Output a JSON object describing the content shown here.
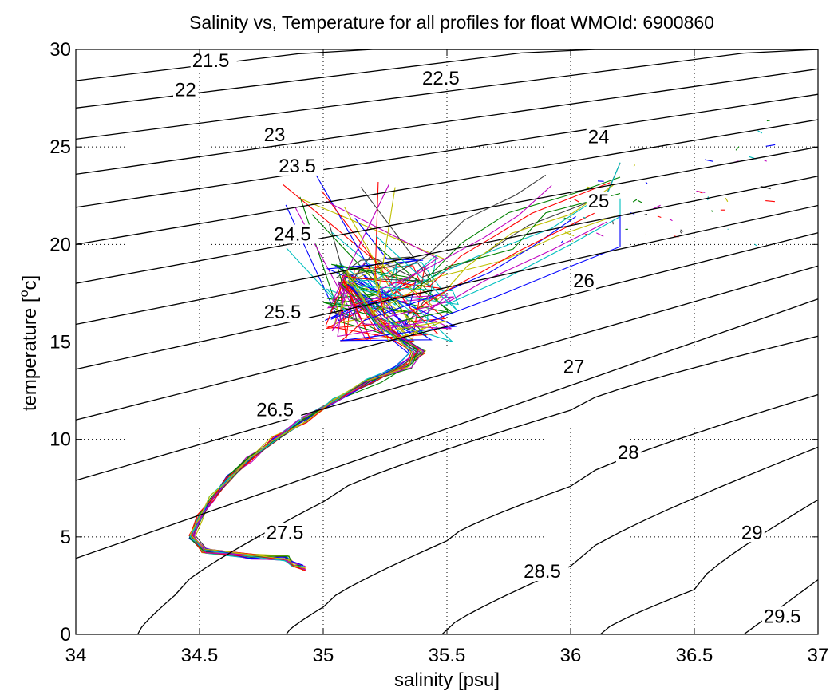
{
  "chart_data": {
    "type": "line",
    "title": "Salinity vs, Temperature for all profiles for float WMOId: 6900860",
    "xlabel": "salinity [psu]",
    "ylabel_parts": [
      "temperature [",
      "o",
      "c]"
    ],
    "xlim": [
      34,
      37
    ],
    "ylim": [
      0,
      30
    ],
    "x_ticks": [
      34,
      34.5,
      35,
      35.5,
      36,
      36.5,
      37
    ],
    "x_tick_labels": [
      "34",
      "34.5",
      "35",
      "35.5",
      "36",
      "36.5",
      "37"
    ],
    "y_ticks": [
      0,
      5,
      10,
      15,
      20,
      25,
      30
    ],
    "y_tick_labels": [
      "0",
      "5",
      "10",
      "15",
      "20",
      "25",
      "30"
    ],
    "grid": true,
    "isopycnals": [
      {
        "label": "21.5",
        "points": [
          [
            34.0,
            28.4
          ],
          [
            37.0,
            33.0
          ]
        ],
        "label_at": [
          34.47,
          29.1
        ]
      },
      {
        "label": "22",
        "points": [
          [
            34.0,
            27.0
          ],
          [
            37.0,
            31.7
          ]
        ],
        "label_at": [
          34.4,
          27.6
        ]
      },
      {
        "label": "22.5",
        "points": [
          [
            34.0,
            25.4
          ],
          [
            37.0,
            30.3
          ]
        ],
        "label_at": [
          35.4,
          28.2
        ]
      },
      {
        "label": "23",
        "points": [
          [
            34.0,
            23.6
          ],
          [
            37.0,
            29.0
          ]
        ],
        "label_at": [
          34.76,
          25.3
        ]
      },
      {
        "label": "23.5",
        "points": [
          [
            34.0,
            21.9
          ],
          [
            37.0,
            27.7
          ]
        ],
        "label_at": [
          34.82,
          23.7
        ]
      },
      {
        "label": "24",
        "points": [
          [
            34.0,
            20.0
          ],
          [
            37.0,
            26.4
          ]
        ],
        "label_at": [
          36.07,
          25.2
        ]
      },
      {
        "label": "24.5",
        "points": [
          [
            34.0,
            18.0
          ],
          [
            37.0,
            25.0
          ]
        ],
        "label_at": [
          34.8,
          20.2
        ]
      },
      {
        "label": "25",
        "points": [
          [
            34.0,
            15.9
          ],
          [
            37.0,
            23.5
          ]
        ],
        "label_at": [
          36.07,
          21.9
        ]
      },
      {
        "label": "25.5",
        "points": [
          [
            34.0,
            13.6
          ],
          [
            37.0,
            22.0
          ]
        ],
        "label_at": [
          34.76,
          16.2
        ]
      },
      {
        "label": "26",
        "points": [
          [
            34.0,
            11.0
          ],
          [
            37.0,
            20.6
          ]
        ],
        "label_at": [
          36.01,
          17.8
        ]
      },
      {
        "label": "26.5",
        "points": [
          [
            34.0,
            7.9
          ],
          [
            37.0,
            18.9
          ]
        ],
        "label_at": [
          34.73,
          11.2
        ]
      },
      {
        "label": "27",
        "points": [
          [
            34.0,
            3.9
          ],
          [
            37.0,
            17.2
          ]
        ],
        "label_at": [
          35.97,
          13.4
        ]
      },
      {
        "label": "27.5",
        "points": [
          [
            34.25,
            0.0
          ],
          [
            34.4,
            2.0
          ],
          [
            35.0,
            6.8
          ],
          [
            36.0,
            11.5
          ],
          [
            37.0,
            15.3
          ]
        ],
        "label_at": [
          34.77,
          4.9
        ]
      },
      {
        "label": "28",
        "points": [
          [
            34.85,
            0.0
          ],
          [
            35.0,
            1.4
          ],
          [
            35.5,
            4.8
          ],
          [
            36.0,
            7.6
          ],
          [
            37.0,
            12.3
          ]
        ],
        "label_at": [
          36.19,
          9.0
        ]
      },
      {
        "label": "28.5",
        "points": [
          [
            35.48,
            0.0
          ],
          [
            36.0,
            3.5
          ],
          [
            37.0,
            9.6
          ]
        ],
        "label_at": [
          35.81,
          2.9
        ]
      },
      {
        "label": "29",
        "points": [
          [
            36.12,
            0.0
          ],
          [
            36.5,
            2.3
          ],
          [
            37.0,
            6.9
          ]
        ],
        "label_at": [
          36.69,
          4.9
        ]
      },
      {
        "label": "29.5",
        "points": [
          [
            36.7,
            0.0
          ],
          [
            37.0,
            2.8
          ]
        ],
        "label_at": [
          36.78,
          0.6
        ]
      }
    ],
    "profile_colors": [
      "#0000ff",
      "#008000",
      "#ff0000",
      "#00bfbf",
      "#bf00bf",
      "#bfbf00",
      "#404040"
    ],
    "profile_count": 20,
    "profile_template": {
      "shallow_s": [
        34.78,
        34.92
      ],
      "shallow_t": [
        19.5,
        24.0
      ],
      "points": [
        [
          35.1,
          18.0
        ],
        [
          35.25,
          15.8
        ],
        [
          35.38,
          14.5
        ],
        [
          35.32,
          13.8
        ],
        [
          35.2,
          13.0
        ],
        [
          35.05,
          12.0
        ],
        [
          34.92,
          11.0
        ],
        [
          34.8,
          10.0
        ],
        [
          34.7,
          9.0
        ],
        [
          34.62,
          8.0
        ],
        [
          34.55,
          7.0
        ],
        [
          34.5,
          6.0
        ],
        [
          34.47,
          5.0
        ],
        [
          34.52,
          4.3
        ],
        [
          34.7,
          4.0
        ],
        [
          34.85,
          3.9
        ],
        [
          34.88,
          3.6
        ],
        [
          34.92,
          3.4
        ]
      ]
    },
    "warm_fragments_region": {
      "s": [
        35.95,
        36.8
      ],
      "t": [
        20.0,
        26.8
      ],
      "count": 45
    }
  }
}
